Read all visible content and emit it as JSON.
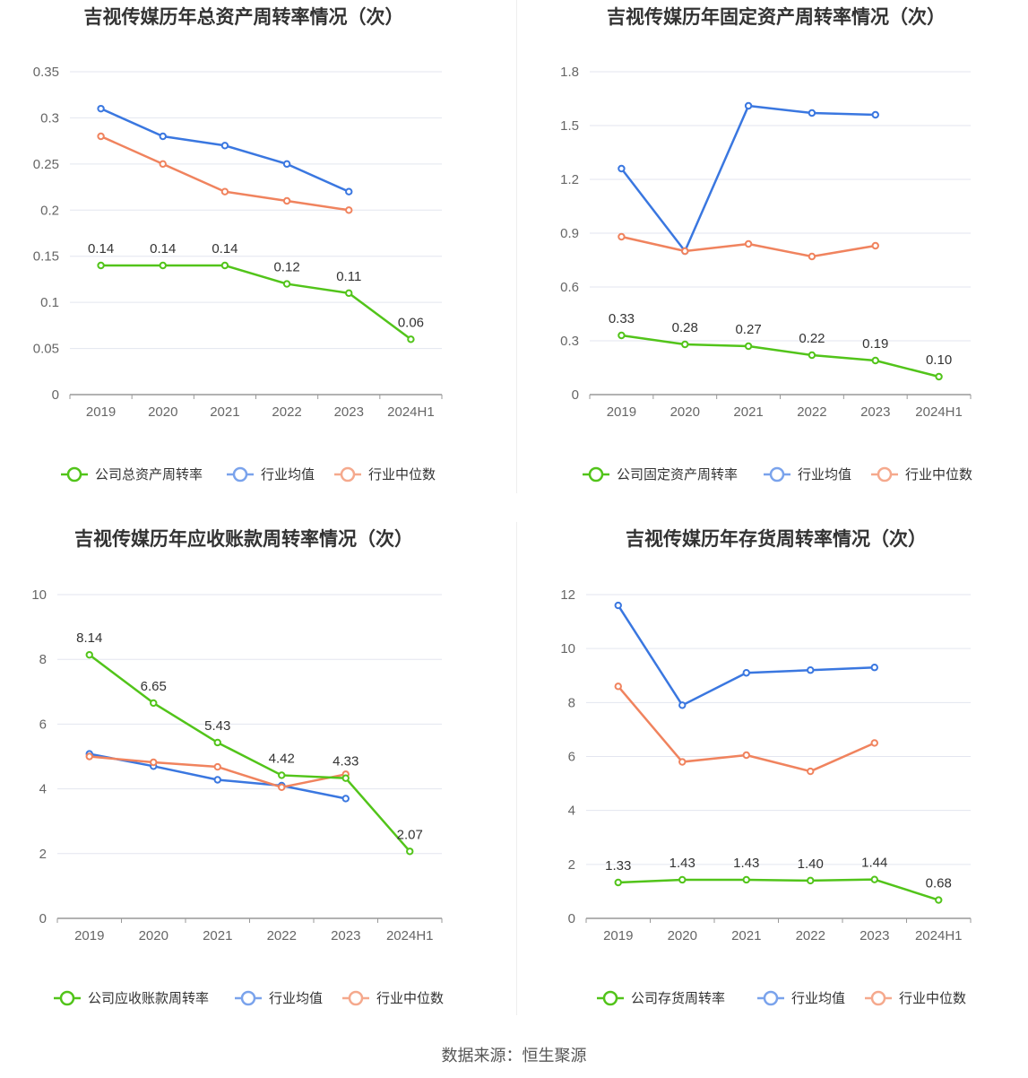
{
  "chart_data": [
    {
      "type": "line",
      "title": "吉视传媒历年总资产周转率情况（次）",
      "categories": [
        "2019",
        "2020",
        "2021",
        "2022",
        "2023",
        "2024H1"
      ],
      "ylim": [
        0,
        0.35
      ],
      "yticks": [
        "0",
        "0.05",
        "0.1",
        "0.15",
        "0.2",
        "0.25",
        "0.3",
        "0.35"
      ],
      "series": [
        {
          "name": "公司总资产周转率",
          "color": "#52c41a",
          "values": [
            0.14,
            0.14,
            0.14,
            0.12,
            0.11,
            0.06
          ],
          "labels": [
            "0.14",
            "0.14",
            "0.14",
            "0.12",
            "0.11",
            "0.06"
          ]
        },
        {
          "name": "行业均值",
          "color": "#3a77e0",
          "values": [
            0.31,
            0.28,
            0.27,
            0.25,
            0.22,
            null
          ]
        },
        {
          "name": "行业中位数",
          "color": "#f0835e",
          "values": [
            0.28,
            0.25,
            0.22,
            0.21,
            0.2,
            null
          ]
        }
      ]
    },
    {
      "type": "line",
      "title": "吉视传媒历年固定资产周转率情况（次）",
      "categories": [
        "2019",
        "2020",
        "2021",
        "2022",
        "2023",
        "2024H1"
      ],
      "ylim": [
        0,
        1.8
      ],
      "yticks": [
        "0",
        "0.3",
        "0.6",
        "0.9",
        "1.2",
        "1.5",
        "1.8"
      ],
      "series": [
        {
          "name": "公司固定资产周转率",
          "color": "#52c41a",
          "values": [
            0.33,
            0.28,
            0.27,
            0.22,
            0.19,
            0.1
          ],
          "labels": [
            "0.33",
            "0.28",
            "0.27",
            "0.22",
            "0.19",
            "0.10"
          ]
        },
        {
          "name": "行业均值",
          "color": "#3a77e0",
          "values": [
            1.26,
            0.8,
            1.61,
            1.57,
            1.56,
            null
          ]
        },
        {
          "name": "行业中位数",
          "color": "#f0835e",
          "values": [
            0.88,
            0.8,
            0.84,
            0.77,
            0.83,
            null
          ]
        }
      ]
    },
    {
      "type": "line",
      "title": "吉视传媒历年应收账款周转率情况（次）",
      "categories": [
        "2019",
        "2020",
        "2021",
        "2022",
        "2023",
        "2024H1"
      ],
      "ylim": [
        0,
        10
      ],
      "yticks": [
        "0",
        "2",
        "4",
        "6",
        "8",
        "10"
      ],
      "series": [
        {
          "name": "公司应收账款周转率",
          "color": "#52c41a",
          "values": [
            8.14,
            6.65,
            5.43,
            4.42,
            4.33,
            2.07
          ],
          "labels": [
            "8.14",
            "6.65",
            "5.43",
            "4.42",
            "4.33",
            "2.07"
          ]
        },
        {
          "name": "行业均值",
          "color": "#3a77e0",
          "values": [
            5.08,
            4.7,
            4.28,
            4.1,
            3.7,
            null
          ]
        },
        {
          "name": "行业中位数",
          "color": "#f0835e",
          "values": [
            5.0,
            4.82,
            4.68,
            4.05,
            4.45,
            null
          ]
        }
      ]
    },
    {
      "type": "line",
      "title": "吉视传媒历年存货周转率情况（次）",
      "categories": [
        "2019",
        "2020",
        "2021",
        "2022",
        "2023",
        "2024H1"
      ],
      "ylim": [
        0,
        12
      ],
      "yticks": [
        "0",
        "2",
        "4",
        "6",
        "8",
        "10",
        "12"
      ],
      "series": [
        {
          "name": "公司存货周转率",
          "color": "#52c41a",
          "values": [
            1.33,
            1.43,
            1.43,
            1.4,
            1.44,
            0.68
          ],
          "labels": [
            "1.33",
            "1.43",
            "1.43",
            "1.40",
            "1.44",
            "0.68"
          ]
        },
        {
          "name": "行业均值",
          "color": "#3a77e0",
          "values": [
            11.6,
            7.9,
            9.1,
            9.2,
            9.3,
            null
          ]
        },
        {
          "name": "行业中位数",
          "color": "#f0835e",
          "values": [
            8.6,
            5.8,
            6.05,
            5.45,
            6.5,
            null
          ]
        }
      ]
    }
  ],
  "legend_colors": {
    "series0": "#52c41a",
    "series1": "#7aa3ec",
    "series2": "#f5a98d"
  },
  "source": "数据来源：恒生聚源"
}
